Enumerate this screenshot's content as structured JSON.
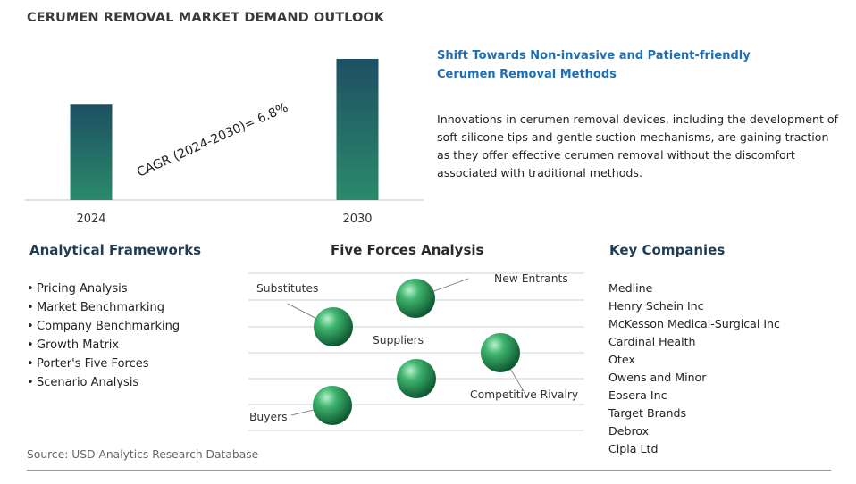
{
  "title": "CERUMEN REMOVAL MARKET DEMAND OUTLOOK",
  "chart_data": {
    "type": "bar",
    "categories": [
      "2024",
      "2030"
    ],
    "values": [
      1.0,
      1.48
    ],
    "annotation": "CAGR (2024-2030)=  6.8%",
    "bar_color_top": "#1e4f63",
    "bar_color_bottom": "#2a8a6a"
  },
  "headline": "Shift Towards Non-invasive and Patient-friendly Cerumen Removal Methods",
  "description": "Innovations in cerumen removal devices, including the development of soft silicone tips and gentle suction mechanisms, are gaining traction as they offer effective cerumen removal without the discomfort associated with traditional methods.",
  "frameworks": {
    "title": "Analytical Frameworks",
    "items": [
      "Pricing Analysis",
      "Market Benchmarking",
      "Company Benchmarking",
      "Growth Matrix",
      "Porter's Five Forces",
      "Scenario Analysis"
    ]
  },
  "five_forces": {
    "title": "Five Forces Analysis",
    "labels": {
      "substitutes": "Substitutes",
      "new_entrants": "New Entrants",
      "suppliers": "Suppliers",
      "competitive_rivalry": "Competitive Rivalry",
      "buyers": "Buyers"
    },
    "sphere_color": "#2e9a5c"
  },
  "companies": {
    "title": "Key Companies",
    "items": [
      "Medline",
      "Henry Schein Inc",
      "McKesson Medical-Surgical Inc",
      "Cardinal Health",
      "Otex",
      "Owens and Minor",
      "Eosera Inc",
      "Target Brands",
      "Debrox",
      "Cipla Ltd"
    ]
  },
  "source": "Source: USD Analytics Research Database"
}
